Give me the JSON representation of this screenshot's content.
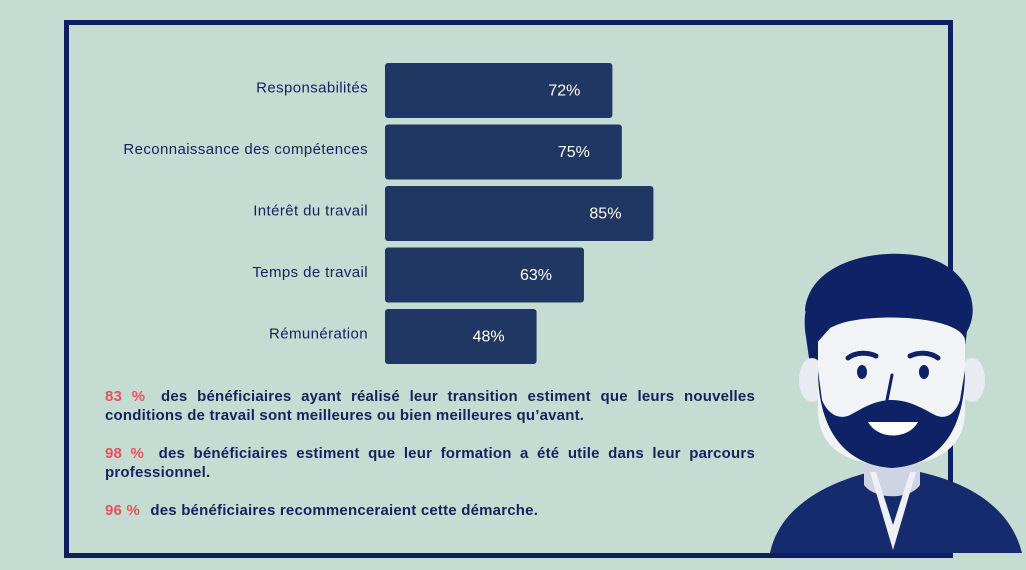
{
  "chart_data": {
    "type": "bar",
    "orientation": "horizontal",
    "categories": [
      "Responsabilités",
      "Reconnaissance des compétences",
      "Intérêt du travail",
      "Temps de travail",
      "Rémunération"
    ],
    "values": [
      72,
      75,
      85,
      63,
      48
    ],
    "value_labels": [
      "72%",
      "75%",
      "85%",
      "63%",
      "48%"
    ],
    "bar_color": "#203764",
    "label_color": "#ffffff"
  },
  "stats": [
    {
      "percent": "83 %",
      "text": "des bénéficiaires ayant réalisé leur transition estiment que leurs nouvelles conditions de travail sont meilleures ou bien meilleures qu’avant."
    },
    {
      "percent": "98 %",
      "text": "des bénéficiaires estiment que leur formation a été utile dans leur parcours professionnel."
    },
    {
      "percent": "96 %",
      "text": "des bénéficiaires recommenceraient cette démarche."
    }
  ],
  "colors": {
    "frame": "#0d1f5c",
    "background": "#c5dcd2",
    "highlight": "#e8515a",
    "text": "#12235e"
  }
}
